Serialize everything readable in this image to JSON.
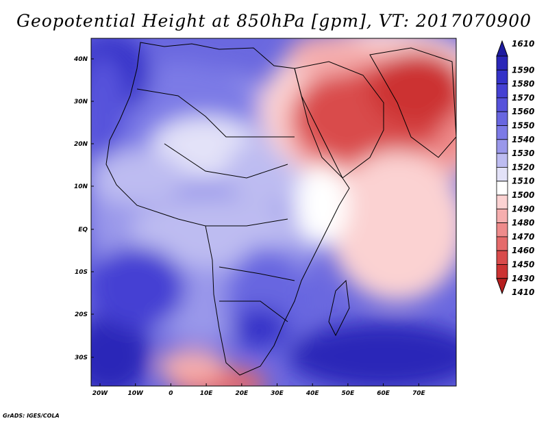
{
  "title": "Geopotential Height at 850hPa [gpm], VT: 2017070900",
  "footer": "GrADS: IGES/COLA",
  "map": {
    "region": "Africa and Middle East",
    "lat_labels": [
      "40N",
      "30N",
      "20N",
      "10N",
      "EQ",
      "10S",
      "20S",
      "30S"
    ],
    "lon_labels": [
      "20W",
      "10W",
      "0",
      "10E",
      "20E",
      "30E",
      "40E",
      "50E",
      "60E",
      "70E"
    ]
  },
  "colorbar": {
    "levels": [
      "1610",
      "1590",
      "1580",
      "1570",
      "1560",
      "1550",
      "1540",
      "1530",
      "1520",
      "1510",
      "1500",
      "1490",
      "1480",
      "1470",
      "1460",
      "1450",
      "1430",
      "1410"
    ],
    "colors": [
      "#1e1ba0",
      "#2a26b8",
      "#3432c8",
      "#4541d3",
      "#5652db",
      "#6866e0",
      "#7c7ae6",
      "#9a98ea",
      "#bdbcf1",
      "#e3e2f8",
      "#ffffff",
      "#fbd2d2",
      "#f5aeae",
      "#ee8b8b",
      "#e56a6a",
      "#d94b4b",
      "#cc3333",
      "#b51f1f"
    ]
  }
}
